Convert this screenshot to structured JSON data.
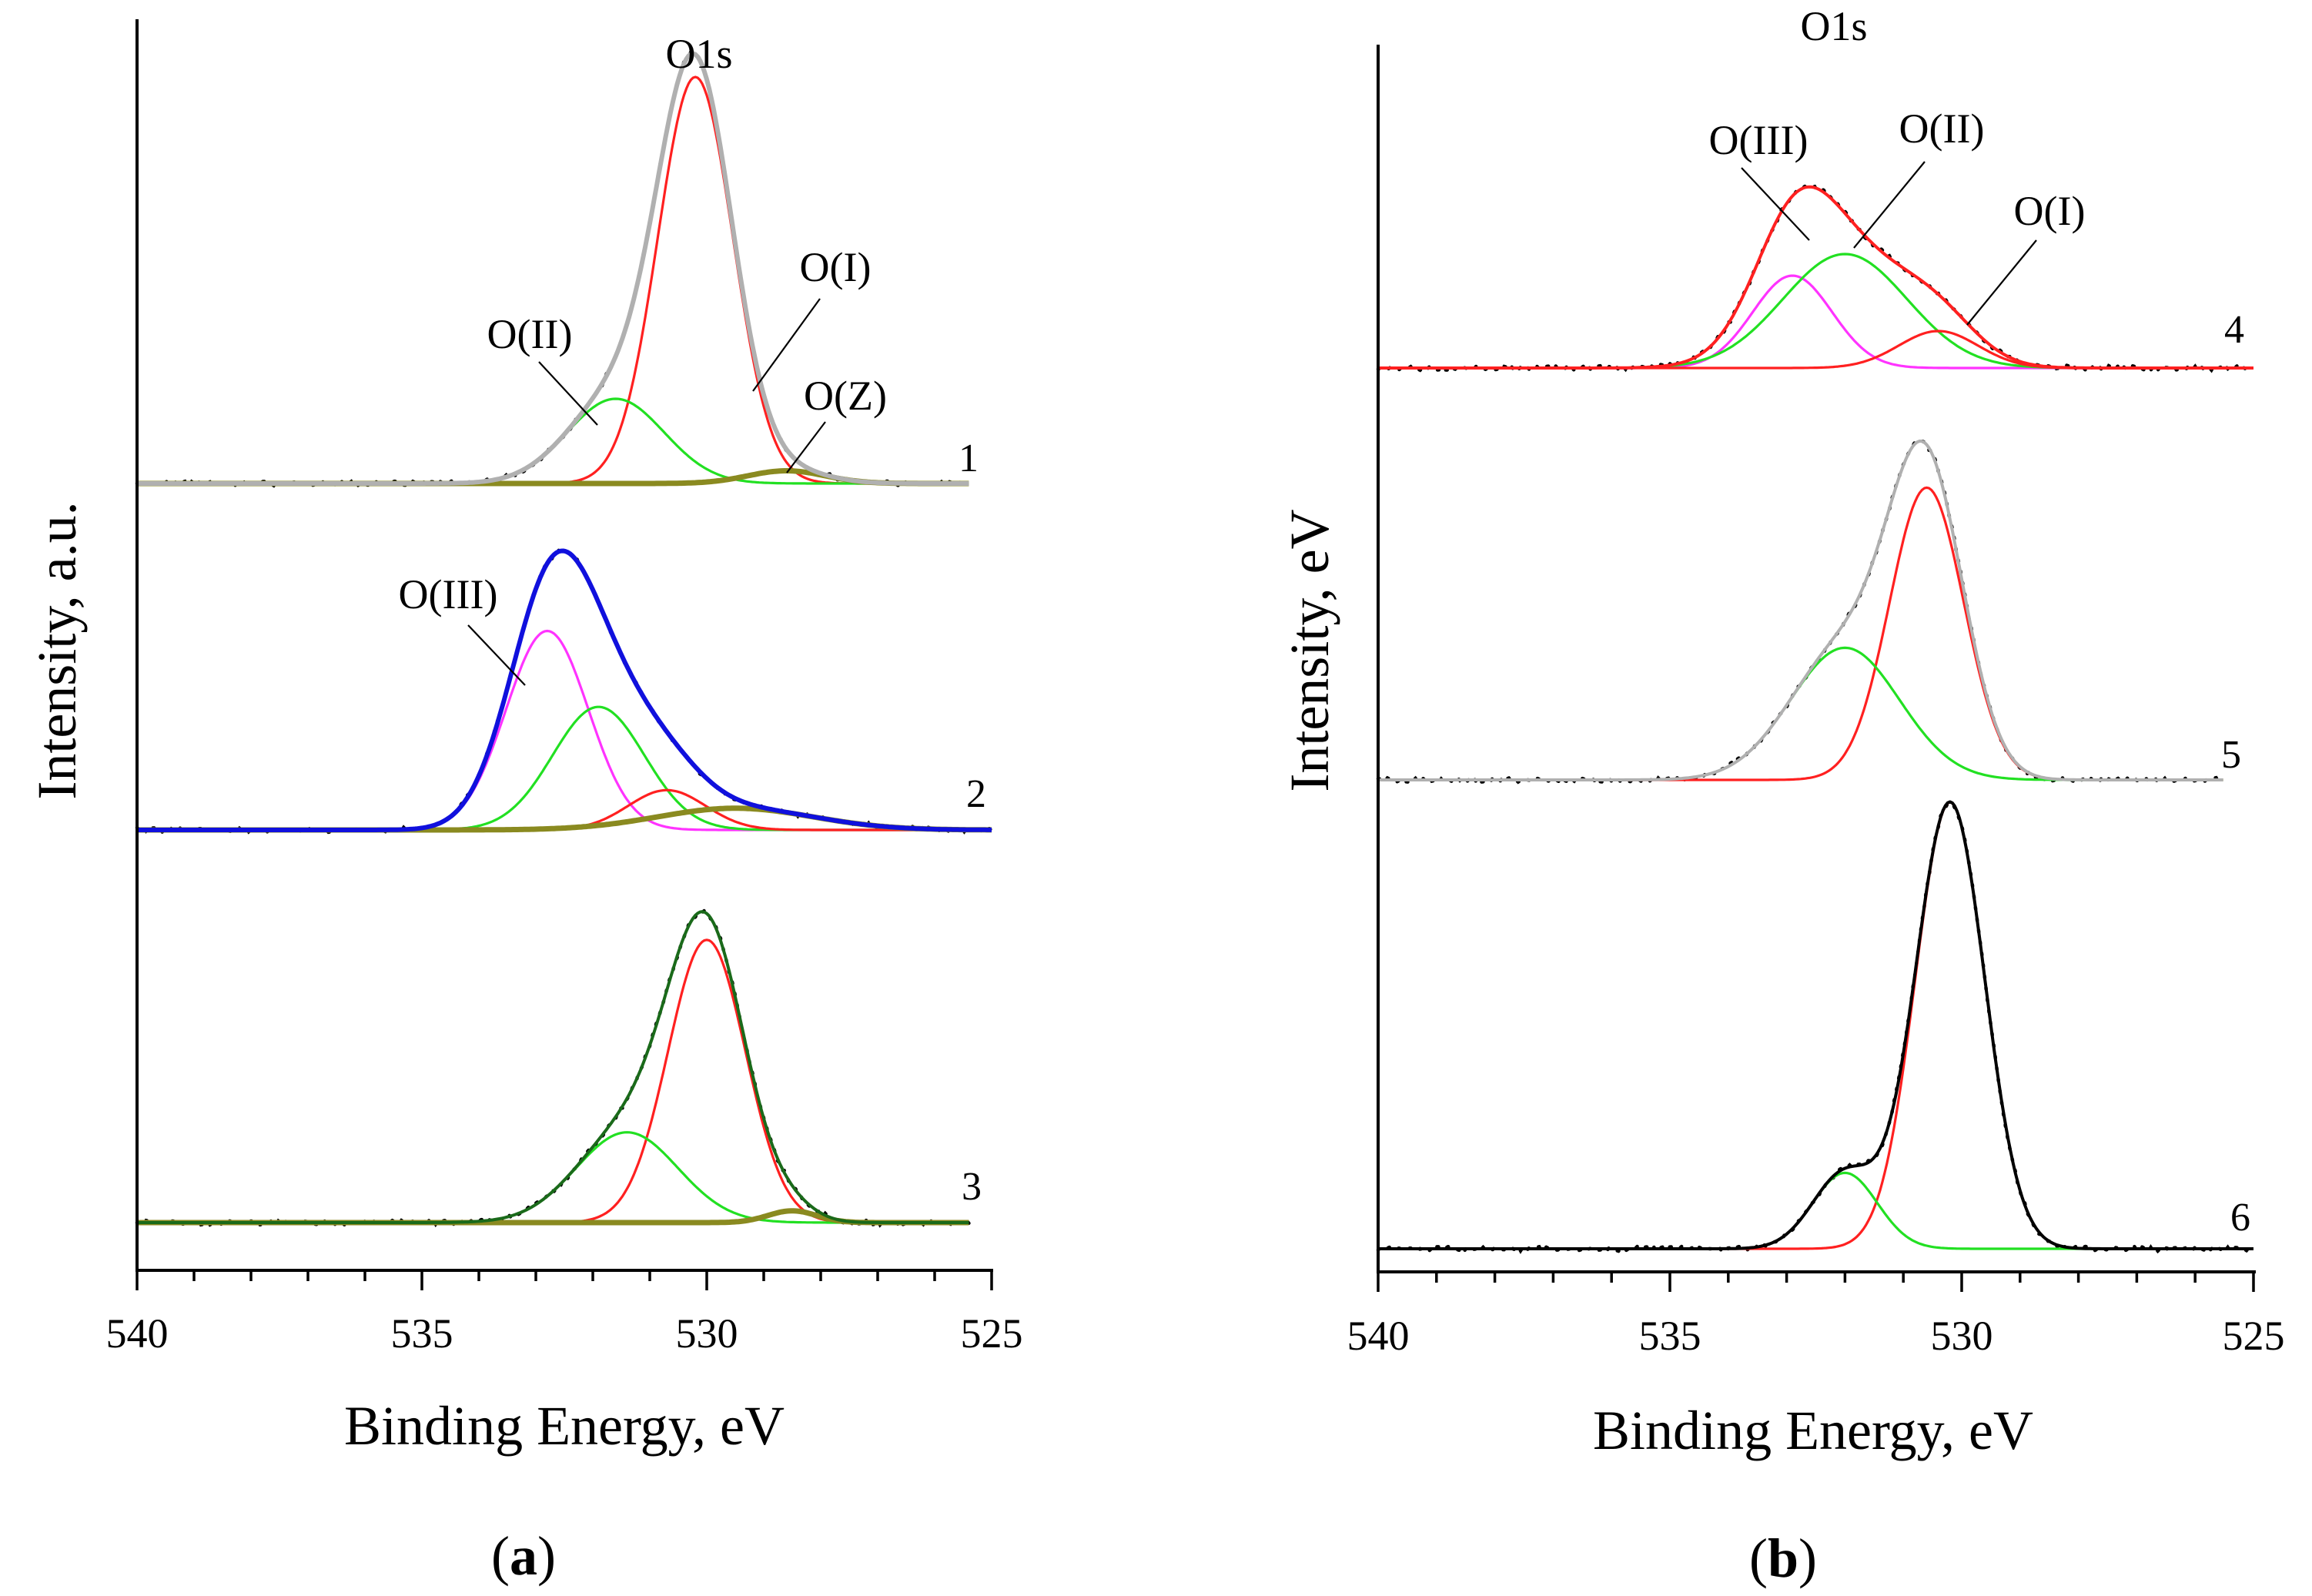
{
  "colors": {
    "red": "#ff2020",
    "green": "#22e022",
    "magenta": "#ff33ff",
    "blue": "#1010dd",
    "olive": "#8a8a20",
    "gray": "#b0b0b0",
    "black": "#000000",
    "darkgreen": "#1a6a1a"
  },
  "chart_data": [
    {
      "panel": "a",
      "type": "line",
      "panel_label": {
        "open": "(",
        "letter": "a",
        "close": ")"
      },
      "xlabel": "Binding Energy, eV",
      "ylabel": "Intensity, a.u.",
      "xlim": [
        540,
        525
      ],
      "xticks": [
        "540",
        "535",
        "530",
        "525"
      ],
      "annotations": [
        {
          "id": "o1s",
          "text": "O1s",
          "x": 530.0
        },
        {
          "id": "o2",
          "text": "O(II)",
          "x": 531.6
        },
        {
          "id": "o1",
          "text": "O(I)",
          "x": 529.6
        },
        {
          "id": "oz",
          "text": "O(Z)",
          "x": 528.6
        },
        {
          "id": "o3",
          "text": "O(III)",
          "x": 532.6
        }
      ],
      "spectra": [
        {
          "label": "1",
          "envelope_color": "gray",
          "x_start": 540,
          "x_end": 525.4,
          "components": [
            {
              "name": "O(I)",
              "color": "red",
              "center": 530.2,
              "height": 0.96,
              "fwhm": 1.55
            },
            {
              "name": "O(II)",
              "color": "green",
              "center": 531.6,
              "height": 0.2,
              "fwhm": 2.0
            },
            {
              "name": "O(Z)",
              "color": "olive",
              "center": 528.6,
              "height": 0.03,
              "fwhm": 1.6
            }
          ]
        },
        {
          "label": "2",
          "envelope_color": "blue",
          "x_start": 540,
          "x_end": 525,
          "components": [
            {
              "name": "O(III)",
              "color": "magenta",
              "center": 532.8,
              "height": 0.55,
              "fwhm": 1.7
            },
            {
              "name": "O(II)",
              "color": "green",
              "center": 531.9,
              "height": 0.34,
              "fwhm": 1.9
            },
            {
              "name": "O(I)",
              "color": "red",
              "center": 530.7,
              "height": 0.11,
              "fwhm": 1.6
            },
            {
              "name": "O(Z)",
              "color": "olive",
              "center": 529.5,
              "height": 0.06,
              "fwhm": 3.2
            }
          ]
        },
        {
          "label": "3",
          "envelope_color": "darkgreen",
          "x_start": 540,
          "x_end": 525.4,
          "components": [
            {
              "name": "O(I)",
              "color": "red",
              "center": 530.0,
              "height": 0.72,
              "fwhm": 1.6
            },
            {
              "name": "O(II)",
              "color": "green",
              "center": 531.4,
              "height": 0.23,
              "fwhm": 2.1
            },
            {
              "name": "O(Z)",
              "color": "olive",
              "center": 528.5,
              "height": 0.03,
              "fwhm": 1.0
            }
          ]
        }
      ]
    },
    {
      "panel": "b",
      "type": "line",
      "panel_label": {
        "open": "(",
        "letter": "b",
        "close": ")"
      },
      "xlabel": "Binding Energy, eV",
      "ylabel": "Intensity, eV",
      "xlim": [
        540,
        525
      ],
      "xticks": [
        "540",
        "535",
        "530",
        "525"
      ],
      "annotations": [
        {
          "id": "o1s",
          "text": "O1s",
          "x": 532.5
        },
        {
          "id": "o3",
          "text": "O(III)",
          "x": 533.0
        },
        {
          "id": "o2",
          "text": "O(II)",
          "x": 531.7
        },
        {
          "id": "o1",
          "text": "O(I)",
          "x": 530.3
        }
      ],
      "spectra": [
        {
          "label": "4",
          "envelope_color": "red",
          "x_start": 540,
          "x_end": 525,
          "components": [
            {
              "name": "O(III)",
              "color": "magenta",
              "center": 532.9,
              "height": 0.3,
              "fwhm": 1.6
            },
            {
              "name": "O(II)",
              "color": "green",
              "center": 532.0,
              "height": 0.37,
              "fwhm": 2.5
            },
            {
              "name": "O(I)",
              "color": "red",
              "center": 530.4,
              "height": 0.12,
              "fwhm": 1.6
            }
          ]
        },
        {
          "label": "5",
          "envelope_color": "gray",
          "x_start": 540,
          "x_end": 525.5,
          "components": [
            {
              "name": "O(I)",
              "color": "red",
              "center": 530.6,
              "height": 0.73,
              "fwhm": 1.5
            },
            {
              "name": "O(II)",
              "color": "green",
              "center": 532.0,
              "height": 0.33,
              "fwhm": 2.2
            }
          ]
        },
        {
          "label": "6",
          "envelope_color": "black",
          "x_start": 540,
          "x_end": 525,
          "components": [
            {
              "name": "O(I)",
              "color": "red",
              "center": 530.2,
              "height": 1.0,
              "fwhm": 1.4
            },
            {
              "name": "O(II)",
              "color": "green",
              "center": 532.0,
              "height": 0.17,
              "fwhm": 1.3
            }
          ]
        }
      ]
    }
  ]
}
